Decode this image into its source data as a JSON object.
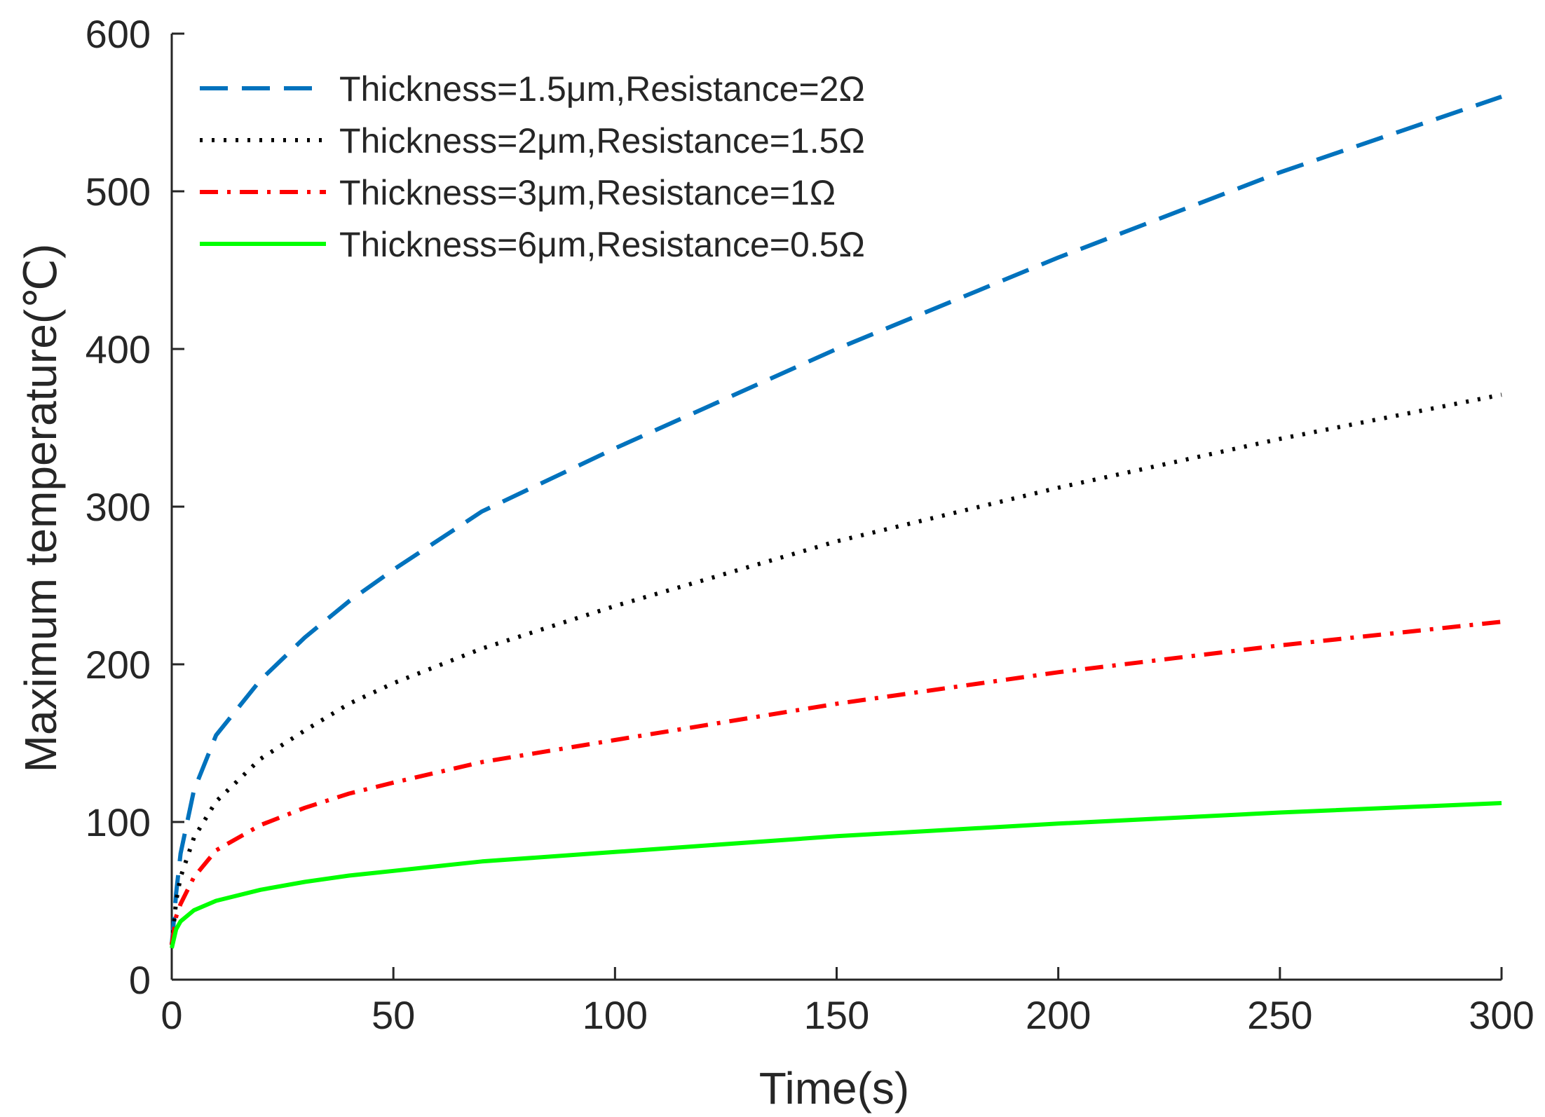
{
  "chart_data": {
    "type": "line",
    "title": "",
    "xlabel": "Time(s)",
    "ylabel": "Maximum temperature(℃)",
    "xlim": [
      0,
      300
    ],
    "ylim": [
      0,
      600
    ],
    "xticks": [
      0,
      50,
      100,
      150,
      200,
      250,
      300
    ],
    "yticks": [
      0,
      100,
      200,
      300,
      400,
      500,
      600
    ],
    "xtick_labels": [
      "0",
      "50",
      "100",
      "150",
      "200",
      "250",
      "300"
    ],
    "ytick_labels": [
      "0",
      "100",
      "200",
      "300",
      "400",
      "500",
      "600"
    ],
    "grid": false,
    "legend_position": "top-left",
    "series": [
      {
        "name": "Thickness=1.5μm,Resistance=2Ω",
        "color": "#0072BD",
        "style": "dashed",
        "x": [
          0,
          1,
          2,
          5,
          10,
          20,
          30,
          40,
          50,
          70,
          100,
          150,
          200,
          250,
          300
        ],
        "y": [
          22,
          55,
          80,
          120,
          155,
          190,
          217,
          240,
          260,
          297,
          337,
          400,
          458,
          512,
          560
        ]
      },
      {
        "name": "Thickness=2μm,Resistance=1.5Ω",
        "color": "#000000",
        "style": "dotted",
        "x": [
          0,
          1,
          2,
          5,
          10,
          20,
          30,
          40,
          50,
          70,
          100,
          150,
          200,
          250,
          300
        ],
        "y": [
          22,
          50,
          65,
          90,
          113,
          140,
          158,
          175,
          188,
          210,
          237,
          278,
          312,
          343,
          371
        ]
      },
      {
        "name": "Thickness=3μm,Resistance=1Ω",
        "color": "#FF0000",
        "style": "dashdot",
        "x": [
          0,
          1,
          2,
          5,
          10,
          20,
          30,
          40,
          50,
          70,
          100,
          150,
          200,
          250,
          300
        ],
        "y": [
          22,
          40,
          48,
          65,
          82,
          98,
          109,
          118,
          125,
          138,
          152,
          175,
          195,
          212,
          227
        ]
      },
      {
        "name": "Thickness=6μm,Resistance=0.5Ω",
        "color": "#00FF00",
        "style": "solid",
        "x": [
          0,
          1,
          2,
          5,
          10,
          20,
          30,
          40,
          50,
          70,
          100,
          150,
          200,
          250,
          300
        ],
        "y": [
          20,
          32,
          37,
          44,
          50,
          57,
          62,
          66,
          69,
          75,
          81,
          91,
          99,
          106,
          112
        ]
      }
    ]
  }
}
